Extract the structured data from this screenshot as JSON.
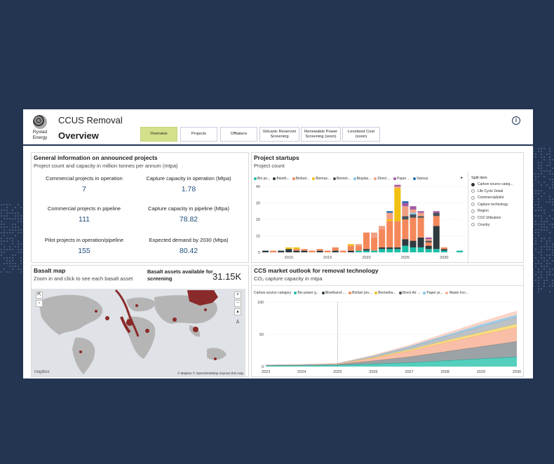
{
  "app": {
    "title": "CCUS Removal",
    "page": "Overview",
    "logo_line1": "Rystad",
    "logo_line2": "Energy"
  },
  "nav": [
    {
      "label": "Overview",
      "active": true
    },
    {
      "label": "Projects"
    },
    {
      "label": "Offtakers"
    },
    {
      "label": "Volcanic Reservoir Screening"
    },
    {
      "label": "Renewable Power Screening (soon)"
    },
    {
      "label": "Levelized Cost (soon)"
    }
  ],
  "general": {
    "title": "General information on announced projects",
    "subtitle": "Project count and capacity in million tonnes per annum (mtpa)",
    "stats": [
      {
        "label": "Commercial projects in operation",
        "value": "7"
      },
      {
        "label": "Capture capacity in operation (Mtpa)",
        "value": "1.78"
      },
      {
        "label": "Commercial projects in pipeline",
        "value": "111"
      },
      {
        "label": "Capture capacity in pipeline (Mtpa)",
        "value": "78.82"
      },
      {
        "label": "Pilot projects in operation/pipeline",
        "value": "155"
      },
      {
        "label": "Expected demand by 2030 (Mtpa)",
        "value": "80.42"
      }
    ]
  },
  "startups": {
    "title": "Project startups",
    "subtitle": "Project count",
    "legend": [
      "Bio po...",
      "Bioeth...",
      "Biofuel...",
      "Biomas...",
      "Biomet...",
      "Bioplas...",
      "Direct ...",
      "Paper ...",
      "Various"
    ],
    "split_title": "Split item",
    "split_options": [
      {
        "label": "Carbon source categ...",
        "selected": true
      },
      {
        "label": "Life Cycle Detail"
      },
      {
        "label": "Commercial/pilot"
      },
      {
        "label": "Capture technology"
      },
      {
        "label": "Region"
      },
      {
        "label": "CO2 Utilization"
      },
      {
        "label": "Country"
      }
    ]
  },
  "basalt": {
    "title": "Basalt map",
    "subtitle": "Zoom in and click to see each basalt asset",
    "kpi_label": "Basalt assets available for screening",
    "kpi_value": "31.15K",
    "attribution": "© Mapbox © OpenStreetMap Improve this map",
    "mapbox": "mapbox"
  },
  "outlook": {
    "title": "CCS market outlook for removal technology",
    "subtitle": "CO₂ capture capacity in mtpa",
    "legend_title": "Carbon source category",
    "legend": [
      "Bio power g...",
      "Bioethanol ...",
      "Biofuel pro...",
      "Biometha...",
      "Direct Air ...",
      "Paper pr...",
      "Waste Inci..."
    ]
  },
  "colors": {
    "bio_power": "#1bbfa8",
    "bioethanol": "#2e3a3e",
    "biofuel": "#f4885a",
    "biomass": "#f2c012",
    "biomethane": "#4b5258",
    "bioplastics": "#7ec3e8",
    "direct_air": "#f2a083",
    "paper": "#a45aa3",
    "various": "#1f6fb0"
  },
  "chart_data": [
    {
      "type": "bar",
      "title": "Project startups",
      "ylabel": "Project count",
      "ylim": [
        0,
        40
      ],
      "x": [
        2007,
        2008,
        2009,
        2010,
        2011,
        2012,
        2013,
        2014,
        2015,
        2016,
        2017,
        2018,
        2019,
        2020,
        2021,
        2022,
        2023,
        2024,
        2025,
        2026,
        2027,
        2028,
        2029,
        2030,
        2031,
        2032
      ],
      "series": [
        {
          "name": "Bio po...",
          "values": [
            0,
            0,
            0,
            0,
            0,
            0,
            0,
            0,
            0,
            0,
            0,
            0,
            1,
            1,
            1,
            2,
            2,
            2,
            4,
            3,
            3,
            2,
            2,
            1,
            0,
            1
          ]
        },
        {
          "name": "Bioeth...",
          "values": [
            1,
            0,
            1,
            2,
            1,
            1,
            0,
            1,
            0,
            1,
            0,
            1,
            0,
            1,
            0,
            1,
            1,
            1,
            4,
            4,
            6,
            2,
            14,
            1,
            0,
            0
          ]
        },
        {
          "name": "Biofuel...",
          "values": [
            0,
            1,
            0,
            0,
            1,
            1,
            1,
            1,
            1,
            2,
            1,
            3,
            3,
            10,
            8,
            11,
            16,
            16,
            12,
            14,
            12,
            2,
            6,
            1,
            0,
            0
          ]
        },
        {
          "name": "Biomas...",
          "values": [
            0,
            0,
            0,
            1,
            1,
            0,
            0,
            0,
            0,
            0,
            0,
            1,
            0,
            0,
            0,
            0,
            1,
            20,
            0,
            0,
            0,
            0,
            0,
            0,
            0,
            0
          ]
        },
        {
          "name": "Biomet...",
          "values": [
            0,
            0,
            0,
            0,
            0,
            0,
            0,
            0,
            0,
            0,
            0,
            0,
            0,
            0,
            0,
            0,
            0,
            0,
            2,
            2,
            1,
            1,
            2,
            0,
            0,
            0
          ]
        },
        {
          "name": "Bioplas...",
          "values": [
            0,
            0,
            0,
            0,
            0,
            0,
            0,
            0,
            0,
            0,
            0,
            0,
            0,
            0,
            0,
            0,
            0,
            0,
            0,
            1,
            0,
            0,
            0,
            0,
            0,
            0
          ]
        },
        {
          "name": "Direct ...",
          "values": [
            0,
            0,
            0,
            0,
            0,
            0,
            0,
            0,
            0,
            0,
            0,
            0,
            1,
            0,
            3,
            2,
            4,
            1,
            6,
            2,
            2,
            1,
            0,
            0,
            0,
            0
          ]
        },
        {
          "name": "Paper ...",
          "values": [
            0,
            0,
            0,
            0,
            0,
            0,
            0,
            0,
            0,
            0,
            0,
            0,
            0,
            0,
            0,
            0,
            0,
            1,
            2,
            2,
            1,
            1,
            1,
            0,
            0,
            0
          ]
        },
        {
          "name": "Various",
          "values": [
            0,
            0,
            0,
            0,
            0,
            0,
            0,
            0,
            0,
            0,
            0,
            0,
            0,
            0,
            0,
            0,
            1,
            0,
            1,
            0,
            0,
            0,
            0,
            0,
            0,
            0
          ]
        }
      ],
      "xticks": [
        2010,
        2015,
        2020,
        2025,
        2030
      ],
      "yticks": [
        0,
        10,
        20,
        30,
        40
      ]
    },
    {
      "type": "area",
      "title": "CCS market outlook for removal technology",
      "ylabel": "CO2 capture capacity in mtpa",
      "ylim": [
        0,
        100
      ],
      "x": [
        2023,
        2024,
        2025,
        2026,
        2027,
        2028,
        2029,
        2030
      ],
      "series": [
        {
          "name": "Bio power g...",
          "values": [
            1,
            1.5,
            2,
            4,
            6,
            9,
            12,
            15
          ]
        },
        {
          "name": "Bioethanol ...",
          "values": [
            1,
            1,
            1.5,
            5,
            9,
            14,
            19,
            24
          ]
        },
        {
          "name": "Biofuel pro...",
          "values": [
            0.5,
            0.5,
            0.5,
            4,
            9,
            14,
            18,
            22
          ]
        },
        {
          "name": "Biometha...",
          "values": [
            0,
            0,
            0,
            1,
            2,
            3,
            4,
            5
          ]
        },
        {
          "name": "Direct Air ...",
          "values": [
            0,
            0,
            0.5,
            2,
            4,
            6,
            9,
            11
          ]
        },
        {
          "name": "Paper pr...",
          "values": [
            0,
            0,
            0,
            0.5,
            1,
            2,
            3,
            3
          ]
        },
        {
          "name": "Waste Inci...",
          "values": [
            0.5,
            0.5,
            0.5,
            1,
            2,
            3,
            4,
            6
          ]
        }
      ],
      "xticks": [
        2023,
        2024,
        2025,
        2026,
        2027,
        2028,
        2029,
        2030
      ],
      "yticks": [
        0,
        50,
        100
      ]
    }
  ]
}
